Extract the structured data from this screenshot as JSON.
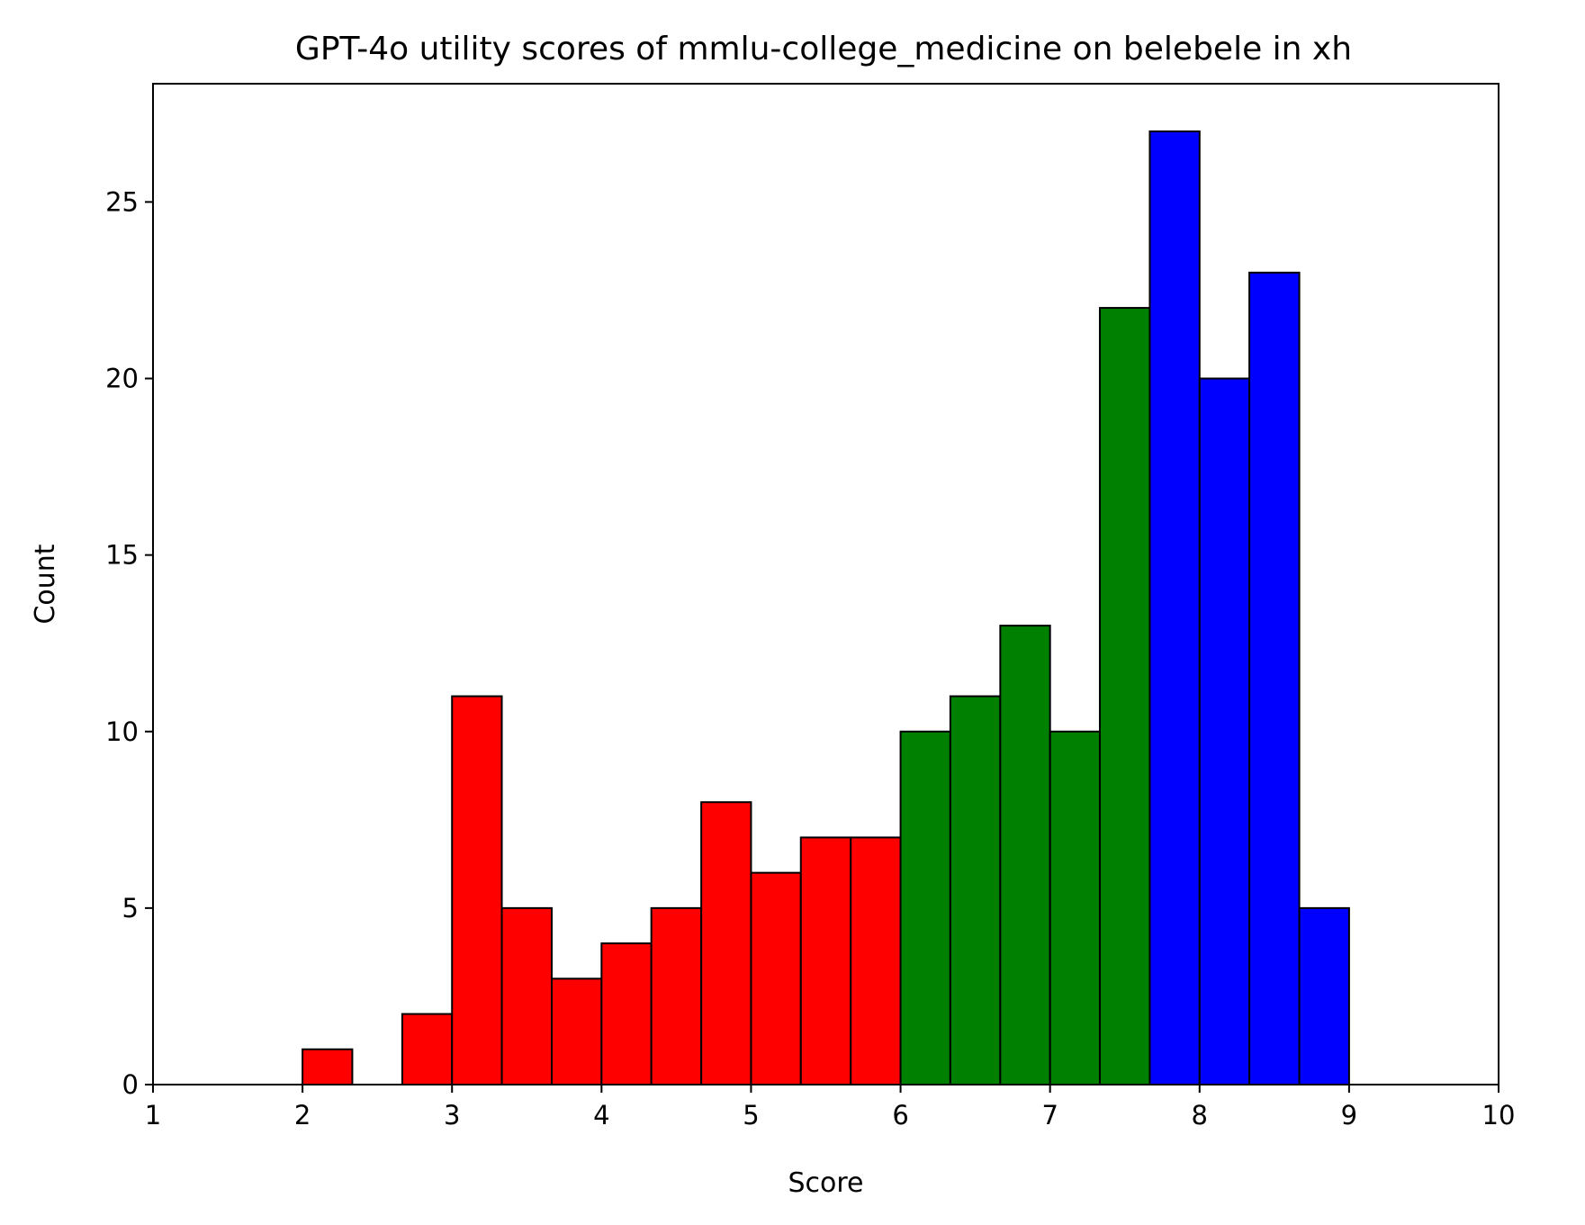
{
  "chart_data": {
    "type": "bar",
    "title": "GPT-4o utility scores of mmlu-college_medicine on belebele in xh",
    "xlabel": "Score",
    "ylabel": "Count",
    "xlim": [
      1,
      10
    ],
    "ylim": [
      0,
      28.35
    ],
    "xticks": [
      1,
      2,
      3,
      4,
      5,
      6,
      7,
      8,
      9,
      10
    ],
    "yticks": [
      0,
      5,
      10,
      15,
      20,
      25
    ],
    "grid": false,
    "legend": "none",
    "bin_width": 0.3333,
    "bins": [
      {
        "x0": 2.0,
        "x1": 2.333,
        "count": 1,
        "color": "#ff0000"
      },
      {
        "x0": 2.333,
        "x1": 2.667,
        "count": 0,
        "color": "#ff0000"
      },
      {
        "x0": 2.667,
        "x1": 3.0,
        "count": 2,
        "color": "#ff0000"
      },
      {
        "x0": 3.0,
        "x1": 3.333,
        "count": 11,
        "color": "#ff0000"
      },
      {
        "x0": 3.333,
        "x1": 3.667,
        "count": 5,
        "color": "#ff0000"
      },
      {
        "x0": 3.667,
        "x1": 4.0,
        "count": 3,
        "color": "#ff0000"
      },
      {
        "x0": 4.0,
        "x1": 4.333,
        "count": 4,
        "color": "#ff0000"
      },
      {
        "x0": 4.333,
        "x1": 4.667,
        "count": 5,
        "color": "#ff0000"
      },
      {
        "x0": 4.667,
        "x1": 5.0,
        "count": 8,
        "color": "#ff0000"
      },
      {
        "x0": 5.0,
        "x1": 5.333,
        "count": 6,
        "color": "#ff0000"
      },
      {
        "x0": 5.333,
        "x1": 5.667,
        "count": 7,
        "color": "#ff0000"
      },
      {
        "x0": 5.667,
        "x1": 6.0,
        "count": 7,
        "color": "#ff0000"
      },
      {
        "x0": 6.0,
        "x1": 6.333,
        "count": 10,
        "color": "#008000"
      },
      {
        "x0": 6.333,
        "x1": 6.667,
        "count": 11,
        "color": "#008000"
      },
      {
        "x0": 6.667,
        "x1": 7.0,
        "count": 13,
        "color": "#008000"
      },
      {
        "x0": 7.0,
        "x1": 7.333,
        "count": 10,
        "color": "#008000"
      },
      {
        "x0": 7.333,
        "x1": 7.667,
        "count": 22,
        "color": "#008000"
      },
      {
        "x0": 7.667,
        "x1": 8.0,
        "count": 27,
        "color": "#0000ff"
      },
      {
        "x0": 8.0,
        "x1": 8.333,
        "count": 20,
        "color": "#0000ff"
      },
      {
        "x0": 8.333,
        "x1": 8.667,
        "count": 23,
        "color": "#0000ff"
      },
      {
        "x0": 8.667,
        "x1": 9.0,
        "count": 5,
        "color": "#0000ff"
      }
    ]
  }
}
